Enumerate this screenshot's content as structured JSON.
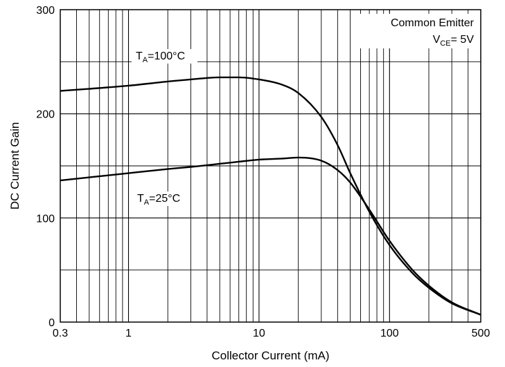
{
  "chart_data": {
    "type": "line",
    "xlabel": "Collector Current (mA)",
    "ylabel": "DC Current Gain",
    "xscale": "log",
    "xlim": [
      0.3,
      500
    ],
    "ylim": [
      0,
      300
    ],
    "x_tick_labels": [
      "0.3",
      "1",
      "10",
      "100",
      "500"
    ],
    "y_tick_labels": [
      "0",
      "100",
      "200",
      "300"
    ],
    "grid": true,
    "annotation": {
      "line1": "Common Emitter",
      "line2_main": "V",
      "line2_sub": "CE",
      "line2_rest": "= 5V"
    },
    "series": [
      {
        "name": "T_A=100°C",
        "label_main": "T",
        "label_sub": "A",
        "label_rest": "=100°C",
        "color": "#000000",
        "x": [
          0.3,
          0.5,
          1,
          2,
          3,
          5,
          7,
          10,
          15,
          20,
          30,
          40,
          50,
          70,
          100,
          150,
          200,
          300,
          500
        ],
        "y": [
          222,
          224,
          227,
          231,
          233,
          235,
          235,
          233,
          228,
          220,
          197,
          170,
          143,
          106,
          74,
          47,
          33,
          18,
          7
        ]
      },
      {
        "name": "T_A=25°C",
        "label_main": "T",
        "label_sub": "A",
        "label_rest": "=25°C",
        "color": "#000000",
        "x": [
          0.3,
          0.5,
          1,
          2,
          3,
          5,
          7,
          10,
          15,
          20,
          30,
          40,
          50,
          70,
          100,
          150,
          200,
          300,
          500
        ],
        "y": [
          136,
          139,
          143,
          147,
          149,
          152,
          154,
          156,
          157,
          158,
          155,
          146,
          134,
          108,
          78,
          50,
          35,
          19,
          7
        ]
      }
    ]
  }
}
